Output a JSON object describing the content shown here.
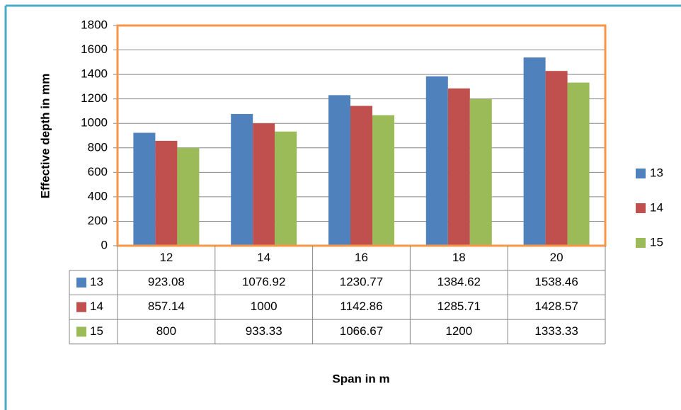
{
  "chart_data": {
    "type": "bar",
    "x_label": "Span in m",
    "y_label": "Effective depth in mm",
    "categories": [
      "12",
      "14",
      "16",
      "18",
      "20"
    ],
    "series": [
      {
        "name": "13",
        "color": "#4f81bd",
        "values": [
          923.08,
          1076.92,
          1230.77,
          1384.62,
          1538.46
        ]
      },
      {
        "name": "14",
        "color": "#c0504d",
        "values": [
          857.14,
          1000,
          1142.86,
          1285.71,
          1428.57
        ]
      },
      {
        "name": "15",
        "color": "#9bbb59",
        "values": [
          800,
          933.33,
          1066.67,
          1200,
          1333.33
        ]
      }
    ],
    "ylim": [
      0,
      1800
    ],
    "yticks": [
      0,
      200,
      400,
      600,
      800,
      1000,
      1200,
      1400,
      1600,
      1800
    ],
    "grid": true,
    "legend": "right",
    "data_table": true
  }
}
